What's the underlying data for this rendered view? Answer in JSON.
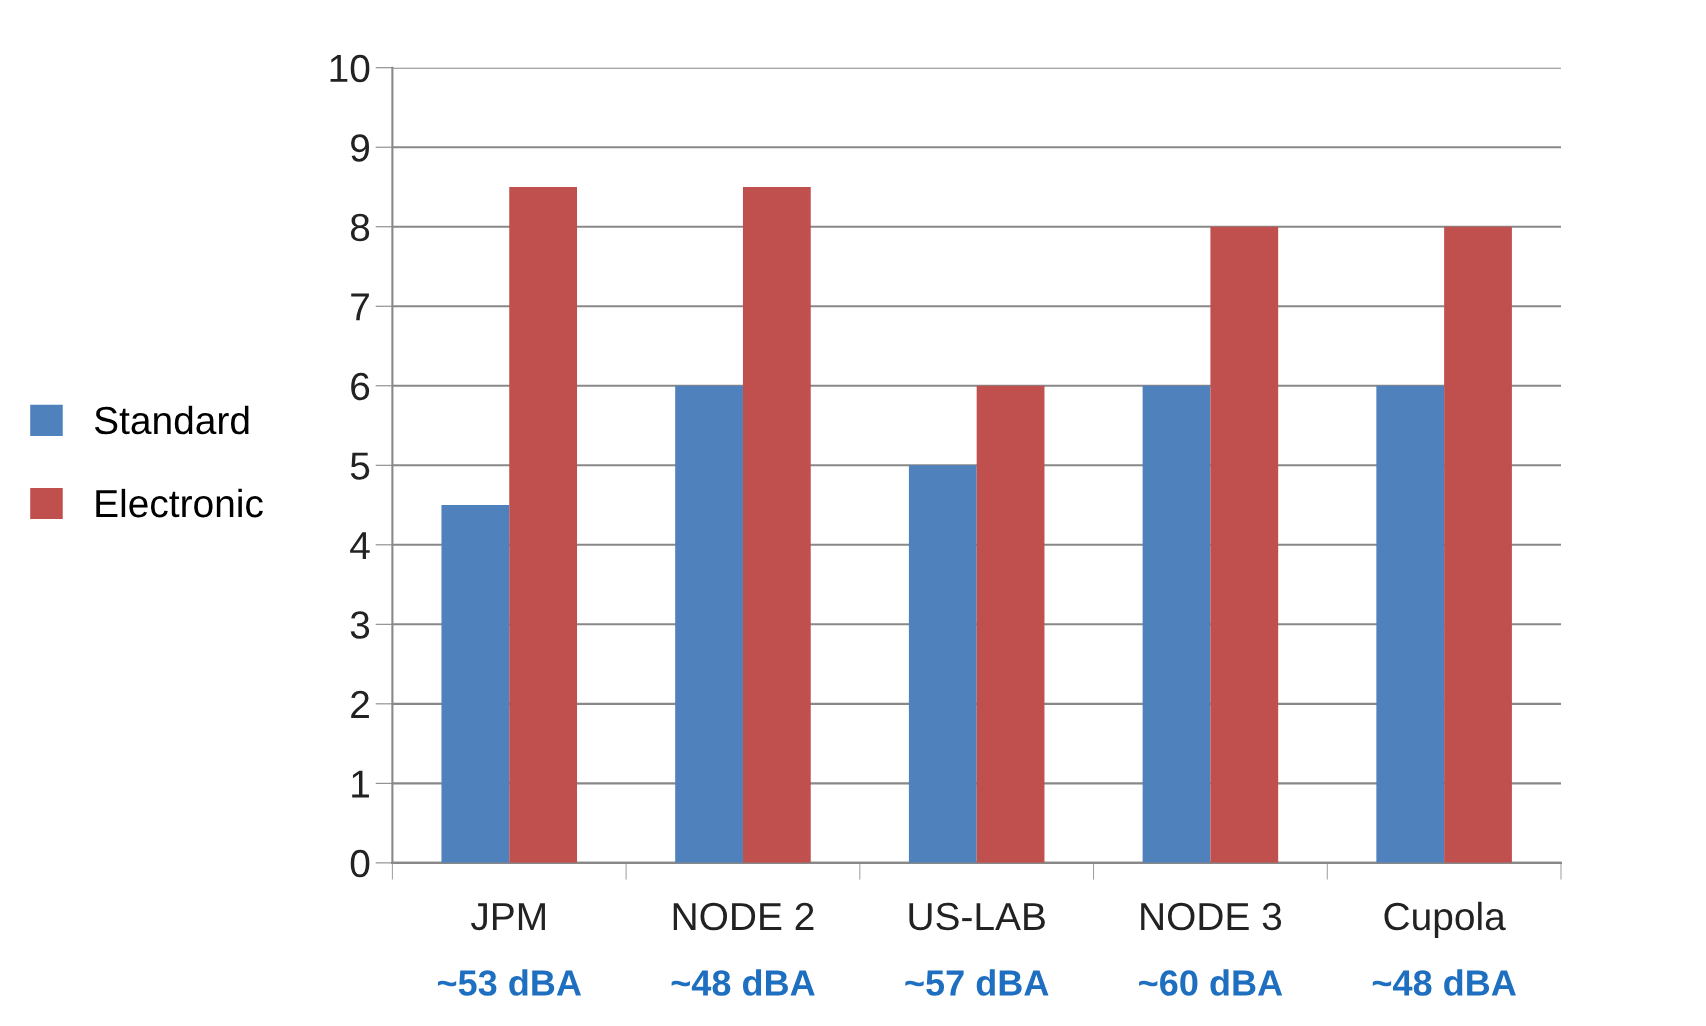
{
  "chart_data": {
    "type": "bar",
    "categories": [
      "JPM",
      "NODE 2",
      "US-LAB",
      "NODE 3",
      "Cupola"
    ],
    "series": [
      {
        "name": "Standard",
        "color": "#4f81bd",
        "values": [
          4.5,
          6,
          5,
          6,
          6
        ]
      },
      {
        "name": "Electronic",
        "color": "#c0504d",
        "values": [
          8.5,
          8.5,
          6,
          8,
          8
        ]
      }
    ],
    "ylim": [
      0,
      10
    ],
    "yticks": [
      0,
      1,
      2,
      3,
      4,
      5,
      6,
      7,
      8,
      9,
      10
    ],
    "grid": "y",
    "legend": "left",
    "annotations": [
      "~53 dBA",
      "~48 dBA",
      "~57 dBA",
      "~60 dBA",
      "~48 dBA"
    ]
  }
}
